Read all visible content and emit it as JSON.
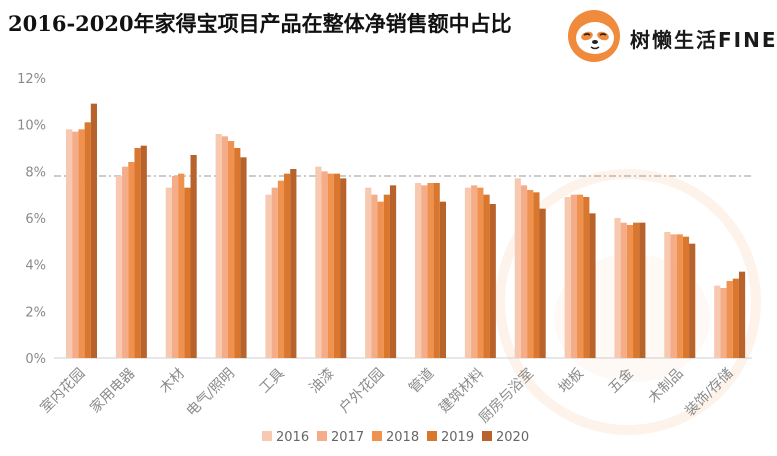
{
  "title": "2016-2020年家得宝项目产品在整体净销售额中占比",
  "brand": "树懒生活FINE",
  "colors": {
    "2016": "#f8c9b1",
    "2017": "#f4ad88",
    "2018": "#f0924f",
    "2019": "#d9772f",
    "2020": "#b8632b",
    "grid": "#cfcfcf",
    "reference_line": "#9a9a9a",
    "axis_text": "#8a8a8a",
    "accent": "#f08a3c"
  },
  "chart_data": {
    "type": "bar",
    "categories": [
      "室内花园",
      "家用电器",
      "木材",
      "电气/照明",
      "工具",
      "油漆",
      "户外花园",
      "管道",
      "建筑材料",
      "厨房与浴室",
      "地板",
      "五金",
      "木制品",
      "装饰/存储"
    ],
    "series": [
      {
        "name": "2016",
        "values": [
          9.8,
          7.8,
          7.3,
          9.6,
          7.0,
          8.2,
          7.3,
          7.5,
          7.3,
          7.7,
          6.9,
          6.0,
          5.4,
          3.1
        ]
      },
      {
        "name": "2017",
        "values": [
          9.7,
          8.2,
          7.8,
          9.5,
          7.3,
          8.0,
          7.0,
          7.4,
          7.4,
          7.4,
          7.0,
          5.8,
          5.3,
          3.0
        ]
      },
      {
        "name": "2018",
        "values": [
          9.8,
          8.4,
          7.9,
          9.3,
          7.6,
          7.9,
          6.7,
          7.5,
          7.3,
          7.2,
          7.0,
          5.7,
          5.3,
          3.3
        ]
      },
      {
        "name": "2019",
        "values": [
          10.1,
          9.0,
          7.3,
          9.0,
          7.9,
          7.9,
          7.0,
          7.5,
          7.0,
          7.1,
          6.9,
          5.8,
          5.2,
          3.4
        ]
      },
      {
        "name": "2020",
        "values": [
          10.9,
          9.1,
          8.7,
          8.6,
          8.1,
          7.7,
          7.4,
          6.7,
          6.6,
          6.4,
          6.2,
          5.8,
          4.9,
          3.7
        ]
      }
    ],
    "ylim": [
      0,
      12
    ],
    "yticks": [
      "0%",
      "2%",
      "4%",
      "6%",
      "8%",
      "10%",
      "12%"
    ],
    "reference_line_value": 7.8,
    "legend": [
      "2016",
      "2017",
      "2018",
      "2019",
      "2020"
    ],
    "legend_position": "bottom",
    "grid": false
  }
}
